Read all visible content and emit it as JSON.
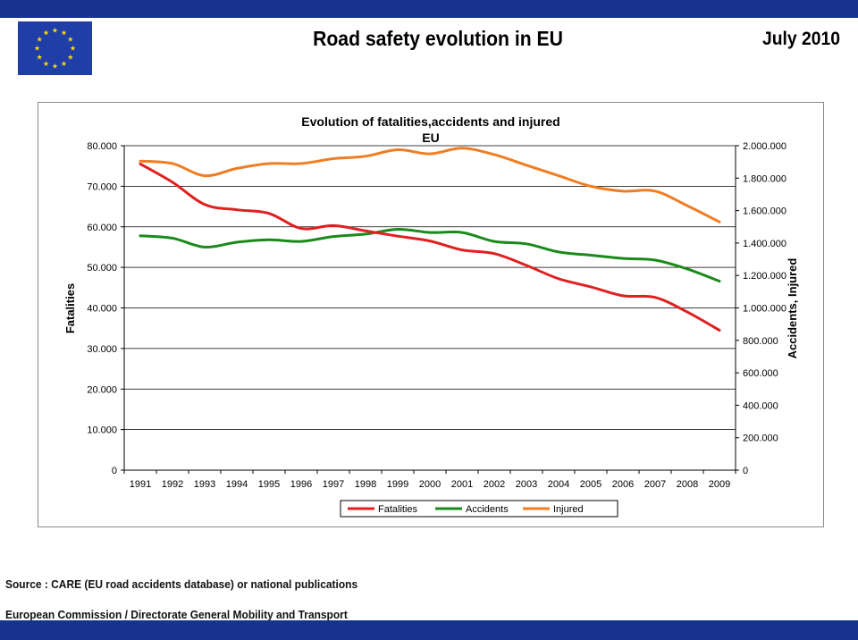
{
  "header": {
    "title": "Road safety evolution in EU",
    "date": "July 2010"
  },
  "colors": {
    "band": "#17338f",
    "flag_blue": "#1f3ea8",
    "flag_star": "#ffd700"
  },
  "icons": {
    "flag": "eu-flag-icon"
  },
  "chart_data": {
    "type": "line",
    "title": "Evolution of fatalities,accidents and injured",
    "subtitle": "EU",
    "x": [
      "1991",
      "1992",
      "1993",
      "1994",
      "1995",
      "1996",
      "1997",
      "1998",
      "1999",
      "2000",
      "2001",
      "2002",
      "2003",
      "2004",
      "2005",
      "2006",
      "2007",
      "2008",
      "2009"
    ],
    "xlabel": "",
    "ylabel": "Fatalities",
    "y2label": "Accidents, Injured",
    "ylim": [
      0,
      80000
    ],
    "y2lim": [
      0,
      2000000
    ],
    "yticks": [
      "0",
      "10.000",
      "20.000",
      "30.000",
      "40.000",
      "50.000",
      "60.000",
      "70.000",
      "80.000"
    ],
    "y2ticks": [
      "0",
      "200.000",
      "400.000",
      "600.000",
      "800.000",
      "1.000.000",
      "1.200.000",
      "1.400.000",
      "1.600.000",
      "1.800.000",
      "2.000.000"
    ],
    "grid": true,
    "legend_position": "bottom",
    "series": [
      {
        "name": "Fatalities",
        "axis": "left",
        "color": "#e02020",
        "values": [
          75500,
          71000,
          65500,
          64200,
          63300,
          59600,
          60300,
          59000,
          57700,
          56500,
          54300,
          53400,
          50500,
          47200,
          45200,
          43000,
          42600,
          39000,
          34500
        ]
      },
      {
        "name": "Accidents",
        "axis": "right",
        "color": "#1a8a1a",
        "values": [
          1445000,
          1430000,
          1375000,
          1405000,
          1420000,
          1410000,
          1440000,
          1455000,
          1485000,
          1465000,
          1465000,
          1410000,
          1395000,
          1345000,
          1325000,
          1305000,
          1295000,
          1240000,
          1165000
        ]
      },
      {
        "name": "Injured",
        "axis": "right",
        "color": "#f07d22",
        "values": [
          1905000,
          1890000,
          1815000,
          1860000,
          1890000,
          1890000,
          1920000,
          1935000,
          1975000,
          1950000,
          1985000,
          1945000,
          1880000,
          1815000,
          1750000,
          1720000,
          1720000,
          1630000,
          1530000
        ]
      }
    ]
  },
  "footer": {
    "source": "Source : CARE (EU road accidents database) or national publications",
    "publisher": "European Commission / Directorate General Mobility and Transport"
  }
}
